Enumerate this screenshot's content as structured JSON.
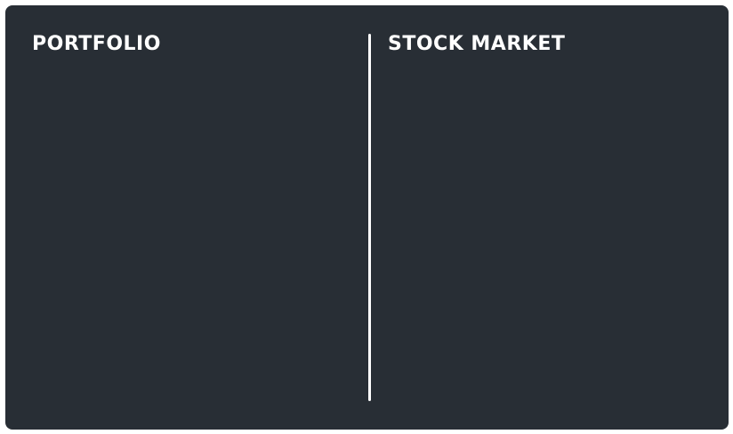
{
  "portfolio": {
    "title": "PORTFOLIO"
  },
  "stock_market": {
    "title": "STOCK MARKET"
  },
  "colors": {
    "panel_background": "#282e35",
    "text": "#ffffff",
    "divider": "#ffffff"
  }
}
